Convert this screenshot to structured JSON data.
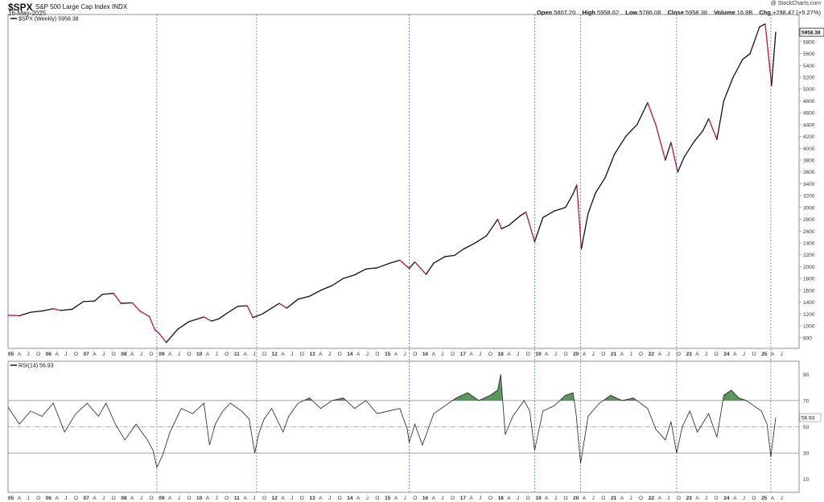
{
  "header": {
    "symbol": "$SPX",
    "name": "S&P 500 Large Cap Index",
    "exchange": "INDX",
    "date": "16-May-2025",
    "brand": "@ StockCharts.com",
    "open_label": "Open",
    "open": "5807.20",
    "high_label": "High",
    "high": "5958.62",
    "low_label": "Low",
    "low": "5786.08",
    "close_label": "Close",
    "close": "5958.38",
    "volume_label": "Volume",
    "volume": "16.8B",
    "chg_label": "Chg",
    "chg": "+298.47 (+5.27%)"
  },
  "colors": {
    "up": "#111111",
    "down": "#c8102e",
    "rsi_fill": "#2e7d32",
    "vline": "#3b7dd8"
  },
  "chart_data": [
    {
      "type": "line",
      "legend": "$SPX (Weekly) 5958.38",
      "last_value_label": "5958.38",
      "ylim": [
        620,
        6260
      ],
      "yticks": [
        800,
        1000,
        1200,
        1400,
        1600,
        1800,
        2000,
        2200,
        2400,
        2600,
        2800,
        3000,
        3200,
        3400,
        3600,
        3800,
        4000,
        4200,
        4400,
        4600,
        4800,
        5000,
        5200,
        5400,
        5600,
        5800,
        6000
      ],
      "xlim": [
        2005.0,
        2026.0
      ],
      "x_tick_labels": [
        "05",
        "A",
        "J",
        "O",
        "06",
        "A",
        "J",
        "O",
        "07",
        "A",
        "J",
        "O",
        "08",
        "A",
        "J",
        "O",
        "09",
        "A",
        "J",
        "O",
        "10",
        "A",
        "J",
        "O",
        "11",
        "A",
        "J",
        "O",
        "12",
        "A",
        "J",
        "O",
        "13",
        "A",
        "J",
        "O",
        "14",
        "A",
        "J",
        "O",
        "15",
        "A",
        "J",
        "O",
        "16",
        "A",
        "J",
        "O",
        "17",
        "A",
        "J",
        "O",
        "18",
        "A",
        "J",
        "O",
        "19",
        "A",
        "J",
        "O",
        "20",
        "A",
        "J",
        "O",
        "21",
        "A",
        "J",
        "O",
        "22",
        "A",
        "J",
        "O",
        "23",
        "A",
        "J",
        "O",
        "24",
        "A",
        "J",
        "O",
        "25",
        "A",
        "J"
      ],
      "series": [
        {
          "x": [
            2005.0,
            2005.3,
            2005.6,
            2005.9,
            2006.2,
            2006.4,
            2006.7,
            2007.0,
            2007.3,
            2007.5,
            2007.8,
            2008.0,
            2008.3,
            2008.5,
            2008.75,
            2008.9,
            2009.0,
            2009.2,
            2009.5,
            2009.8,
            2010.2,
            2010.4,
            2010.6,
            2010.9,
            2011.1,
            2011.35,
            2011.5,
            2011.75,
            2011.9,
            2012.2,
            2012.4,
            2012.7,
            2013.0,
            2013.3,
            2013.6,
            2013.9,
            2014.2,
            2014.5,
            2014.8,
            2015.1,
            2015.4,
            2015.65,
            2015.8,
            2016.1,
            2016.3,
            2016.6,
            2016.85,
            2017.1,
            2017.4,
            2017.7,
            2018.0,
            2018.1,
            2018.3,
            2018.6,
            2018.75,
            2018.98,
            2019.2,
            2019.5,
            2019.8,
            2020.0,
            2020.1,
            2020.22,
            2020.4,
            2020.6,
            2020.85,
            2021.1,
            2021.4,
            2021.7,
            2021.98,
            2022.2,
            2022.45,
            2022.6,
            2022.78,
            2022.95,
            2023.2,
            2023.45,
            2023.6,
            2023.82,
            2024.0,
            2024.25,
            2024.5,
            2024.7,
            2024.95,
            2025.1,
            2025.2,
            2025.27,
            2025.38
          ],
          "y": [
            1180,
            1170,
            1230,
            1250,
            1290,
            1260,
            1280,
            1410,
            1420,
            1530,
            1550,
            1380,
            1390,
            1250,
            1160,
            930,
            880,
            720,
            940,
            1070,
            1150,
            1080,
            1120,
            1250,
            1330,
            1340,
            1140,
            1200,
            1260,
            1380,
            1300,
            1450,
            1500,
            1600,
            1680,
            1800,
            1860,
            1960,
            1980,
            2050,
            2110,
            1970,
            2080,
            1870,
            2060,
            2170,
            2190,
            2300,
            2400,
            2520,
            2800,
            2640,
            2700,
            2860,
            2920,
            2420,
            2830,
            2940,
            3000,
            3230,
            3380,
            2300,
            2900,
            3250,
            3500,
            3900,
            4200,
            4400,
            4770,
            4390,
            3800,
            4100,
            3600,
            3850,
            4100,
            4300,
            4500,
            4150,
            4800,
            5200,
            5500,
            5600,
            6050,
            6100,
            5500,
            5060,
            5960
          ]
        }
      ]
    },
    {
      "type": "line",
      "legend": "RSI(14) 56.93",
      "last_value_label": "56.93",
      "ylim": [
        0,
        100
      ],
      "yticks": [
        10,
        30,
        50,
        70,
        90
      ],
      "overbought": 70,
      "oversold": 30,
      "midline": 50,
      "series": [
        {
          "x": [
            2005.0,
            2005.3,
            2005.6,
            2005.9,
            2006.2,
            2006.5,
            2006.8,
            2007.1,
            2007.4,
            2007.6,
            2007.85,
            2008.1,
            2008.4,
            2008.7,
            2008.85,
            2008.95,
            2009.1,
            2009.3,
            2009.6,
            2009.9,
            2010.2,
            2010.35,
            2010.5,
            2010.7,
            2010.9,
            2011.2,
            2011.4,
            2011.55,
            2011.65,
            2011.8,
            2012.0,
            2012.3,
            2012.45,
            2012.7,
            2013.0,
            2013.3,
            2013.6,
            2013.9,
            2014.2,
            2014.5,
            2014.8,
            2015.1,
            2015.4,
            2015.6,
            2015.65,
            2015.8,
            2016.0,
            2016.1,
            2016.3,
            2016.6,
            2016.9,
            2017.2,
            2017.5,
            2017.8,
            2018.0,
            2018.08,
            2018.2,
            2018.4,
            2018.7,
            2018.85,
            2018.98,
            2019.2,
            2019.5,
            2019.8,
            2020.0,
            2020.08,
            2020.2,
            2020.4,
            2020.7,
            2021.0,
            2021.3,
            2021.6,
            2021.98,
            2022.2,
            2022.45,
            2022.6,
            2022.75,
            2022.9,
            2023.1,
            2023.3,
            2023.6,
            2023.82,
            2024.0,
            2024.2,
            2024.4,
            2024.6,
            2024.8,
            2025.0,
            2025.15,
            2025.25,
            2025.38
          ],
          "y": [
            65,
            52,
            62,
            58,
            68,
            46,
            60,
            68,
            58,
            68,
            52,
            40,
            52,
            40,
            32,
            19,
            28,
            46,
            64,
            60,
            68,
            36,
            52,
            62,
            68,
            62,
            56,
            30,
            44,
            56,
            64,
            46,
            58,
            68,
            72,
            64,
            70,
            72,
            64,
            70,
            60,
            62,
            64,
            48,
            38,
            52,
            36,
            44,
            60,
            66,
            72,
            76,
            70,
            74,
            78,
            90,
            44,
            58,
            70,
            62,
            32,
            62,
            66,
            74,
            76,
            60,
            22,
            58,
            68,
            74,
            70,
            72,
            64,
            48,
            40,
            54,
            30,
            50,
            62,
            46,
            60,
            42,
            74,
            78,
            72,
            70,
            66,
            62,
            52,
            27,
            57
          ]
        }
      ]
    }
  ]
}
